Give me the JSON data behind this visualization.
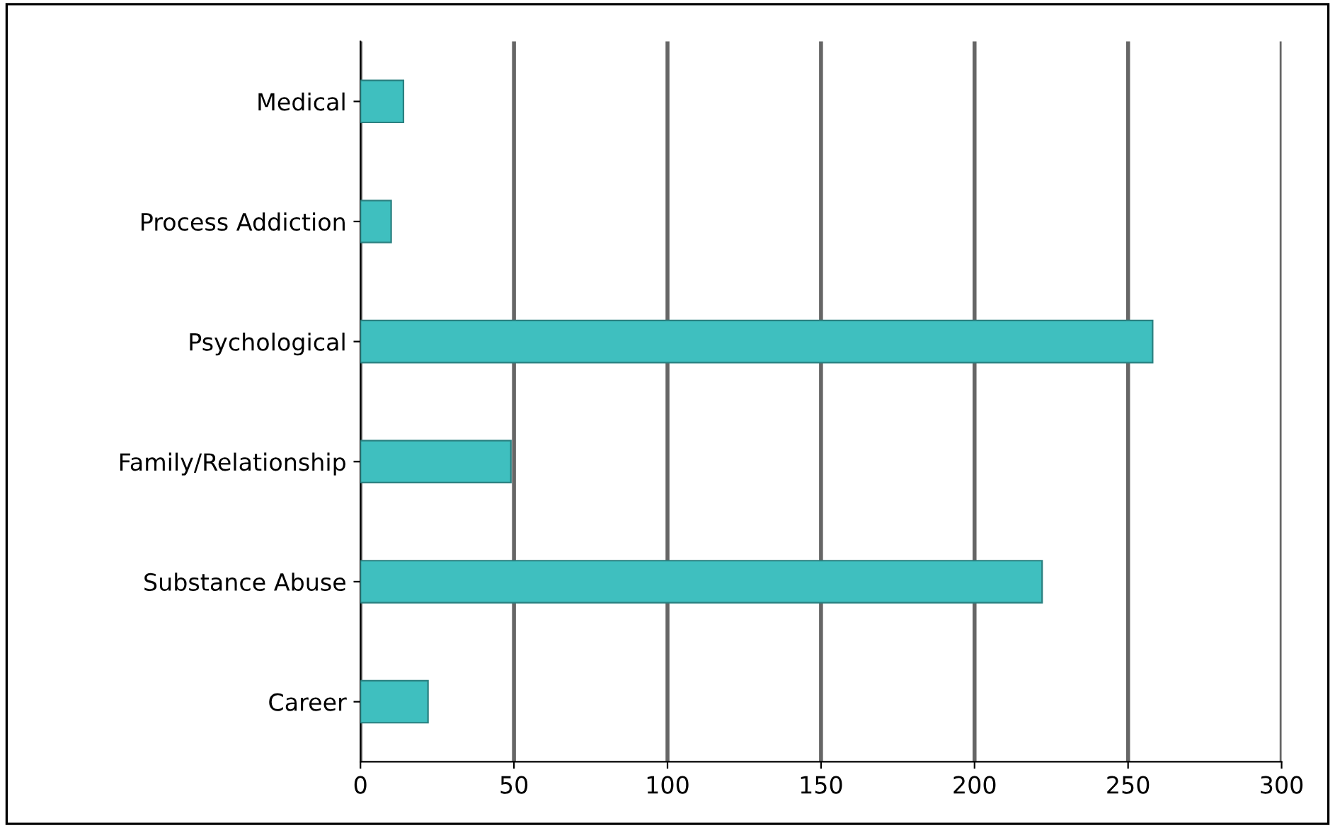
{
  "chart_data": {
    "type": "bar",
    "orientation": "horizontal",
    "categories": [
      "Medical",
      "Process Addiction",
      "Psychological",
      "Family/Relationship",
      "Substance Abuse",
      "Career"
    ],
    "values": [
      14,
      10,
      258,
      49,
      222,
      22
    ],
    "color": "#3fbfbf",
    "xlim": [
      0,
      300
    ],
    "xticks": [
      0,
      50,
      100,
      150,
      200,
      250,
      300
    ],
    "grid": "x"
  }
}
